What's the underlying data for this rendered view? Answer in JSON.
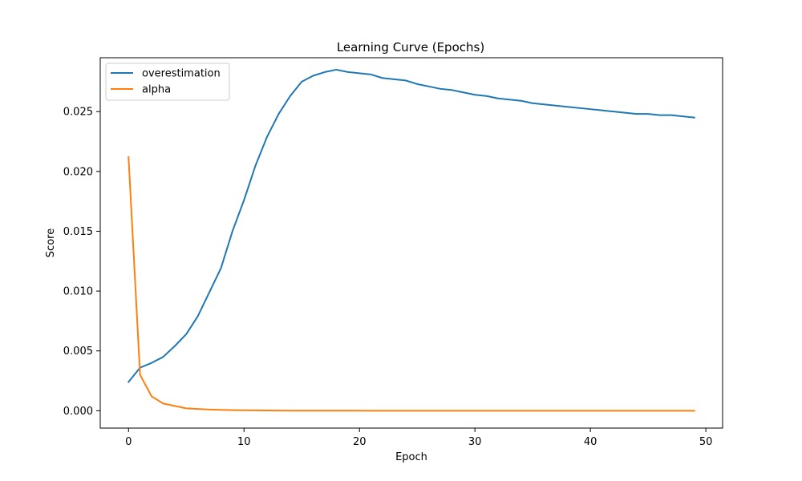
{
  "chart_data": {
    "type": "line",
    "title": "Learning Curve (Epochs)",
    "xlabel": "Epoch",
    "ylabel": "Score",
    "xlim": [
      -2.45,
      51.45
    ],
    "ylim": [
      -0.00145,
      0.0295
    ],
    "xticks": [
      0,
      10,
      20,
      30,
      40,
      50
    ],
    "xtick_labels": [
      "0",
      "10",
      "20",
      "30",
      "40",
      "50"
    ],
    "yticks": [
      0.0,
      0.005,
      0.01,
      0.015,
      0.02,
      0.025
    ],
    "ytick_labels": [
      "0.000",
      "0.005",
      "0.010",
      "0.015",
      "0.020",
      "0.025"
    ],
    "grid": false,
    "legend_position": "top-left",
    "x": [
      0,
      1,
      2,
      3,
      4,
      5,
      6,
      7,
      8,
      9,
      10,
      11,
      12,
      13,
      14,
      15,
      16,
      17,
      18,
      19,
      20,
      21,
      22,
      23,
      24,
      25,
      26,
      27,
      28,
      29,
      30,
      31,
      32,
      33,
      34,
      35,
      36,
      37,
      38,
      39,
      40,
      41,
      42,
      43,
      44,
      45,
      46,
      47,
      48,
      49
    ],
    "series": [
      {
        "name": "overestimation",
        "color": "#1f77b4",
        "values": [
          0.0024,
          0.0036,
          0.004,
          0.0045,
          0.0054,
          0.0064,
          0.0079,
          0.0099,
          0.0119,
          0.015,
          0.0176,
          0.0205,
          0.0229,
          0.0248,
          0.0263,
          0.0275,
          0.028,
          0.0283,
          0.0285,
          0.0283,
          0.0282,
          0.0281,
          0.0278,
          0.0277,
          0.0276,
          0.0273,
          0.0271,
          0.0269,
          0.0268,
          0.0266,
          0.0264,
          0.0263,
          0.0261,
          0.026,
          0.0259,
          0.0257,
          0.0256,
          0.0255,
          0.0254,
          0.0253,
          0.0252,
          0.0251,
          0.025,
          0.0249,
          0.0248,
          0.0248,
          0.0247,
          0.0247,
          0.0246,
          0.0245
        ]
      },
      {
        "name": "alpha",
        "color": "#ff7f0e",
        "values": [
          0.0212,
          0.003,
          0.0012,
          0.0006,
          0.0004,
          0.0002,
          0.00015,
          0.0001,
          7e-05,
          5e-05,
          4e-05,
          3e-05,
          2e-05,
          1.5e-05,
          1e-05,
          1e-05,
          8e-06,
          6e-06,
          5e-06,
          4e-06,
          3e-06,
          2e-06,
          2e-06,
          1e-06,
          1e-06,
          1e-06,
          1e-06,
          1e-06,
          1e-06,
          1e-06,
          1e-06,
          1e-06,
          1e-06,
          1e-06,
          1e-06,
          1e-06,
          1e-06,
          1e-06,
          1e-06,
          1e-06,
          1e-06,
          1e-06,
          1e-06,
          1e-06,
          1e-06,
          1e-06,
          1e-06,
          1e-06,
          1e-06,
          1e-06
        ]
      }
    ]
  }
}
